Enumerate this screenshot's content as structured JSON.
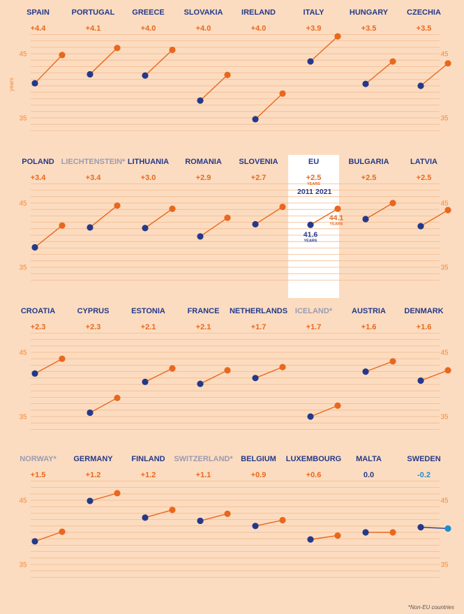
{
  "colors": {
    "background": "#fcdcc0",
    "grid": "#f3b98c",
    "eu_name": "#24398a",
    "non_eu_name": "#9a9ab3",
    "increase": "#e8681e",
    "zero": "#24398a",
    "decrease": "#1a8fd0",
    "dot_2011": "#24398a",
    "dot_2021": "#e8681e",
    "dot_2021_decrease": "#1a8fd0",
    "tick": "#f08a3c",
    "eu_highlight": "#ffffff"
  },
  "chart_data": {
    "type": "line",
    "ylabel": "years",
    "yticks": [
      35,
      45
    ],
    "ylim": [
      32.2,
      48.7
    ],
    "x": [
      "2011",
      "2021"
    ],
    "footnote": "*Non-EU countries",
    "panels": [
      {
        "name": "SPAIN",
        "delta": "+4.4",
        "non_eu": false,
        "v2011": 40.4,
        "v2021": 44.8
      },
      {
        "name": "PORTUGAL",
        "delta": "+4.1",
        "non_eu": false,
        "v2011": 41.8,
        "v2021": 45.9
      },
      {
        "name": "GREECE",
        "delta": "+4.0",
        "non_eu": false,
        "v2011": 41.6,
        "v2021": 45.6
      },
      {
        "name": "SLOVAKIA",
        "delta": "+4.0",
        "non_eu": false,
        "v2011": 37.7,
        "v2021": 41.7
      },
      {
        "name": "IRELAND",
        "delta": "+4.0",
        "non_eu": false,
        "v2011": 34.8,
        "v2021": 38.8
      },
      {
        "name": "ITALY",
        "delta": "+3.9",
        "non_eu": false,
        "v2011": 43.8,
        "v2021": 47.7
      },
      {
        "name": "HUNGARY",
        "delta": "+3.5",
        "non_eu": false,
        "v2011": 40.3,
        "v2021": 43.8
      },
      {
        "name": "CZECHIA",
        "delta": "+3.5",
        "non_eu": false,
        "v2011": 40.0,
        "v2021": 43.5
      },
      {
        "name": "POLAND",
        "delta": "+3.4",
        "non_eu": false,
        "v2011": 38.1,
        "v2021": 41.5
      },
      {
        "name": "LIECHTENSTEIN*",
        "delta": "+3.4",
        "non_eu": true,
        "v2011": 41.2,
        "v2021": 44.6
      },
      {
        "name": "LITHUANIA",
        "delta": "+3.0",
        "non_eu": false,
        "v2011": 41.1,
        "v2021": 44.1
      },
      {
        "name": "ROMANIA",
        "delta": "+2.9",
        "non_eu": false,
        "v2011": 39.8,
        "v2021": 42.7
      },
      {
        "name": "SLOVENIA",
        "delta": "+2.7",
        "non_eu": false,
        "v2011": 41.7,
        "v2021": 44.4
      },
      {
        "name": "EU",
        "delta": "+2.5",
        "non_eu": false,
        "v2011": 41.6,
        "v2021": 44.1,
        "highlight": true,
        "delta_unit": "YEARS",
        "year_start": "2011",
        "year_end": "2021",
        "label_2011": "41.6",
        "label_2021": "44.1",
        "label_unit": "YEARS"
      },
      {
        "name": "BULGARIA",
        "delta": "+2.5",
        "non_eu": false,
        "v2011": 42.5,
        "v2021": 45.0
      },
      {
        "name": "LATVIA",
        "delta": "+2.5",
        "non_eu": false,
        "v2011": 41.4,
        "v2021": 43.9
      },
      {
        "name": "CROATIA",
        "delta": "+2.3",
        "non_eu": false,
        "v2011": 41.7,
        "v2021": 44.0
      },
      {
        "name": "CYPRUS",
        "delta": "+2.3",
        "non_eu": false,
        "v2011": 35.6,
        "v2021": 37.9
      },
      {
        "name": "ESTONIA",
        "delta": "+2.1",
        "non_eu": false,
        "v2011": 40.4,
        "v2021": 42.5
      },
      {
        "name": "FRANCE",
        "delta": "+2.1",
        "non_eu": false,
        "v2011": 40.1,
        "v2021": 42.2
      },
      {
        "name": "NETHERLANDS",
        "delta": "+1.7",
        "non_eu": false,
        "v2011": 41.0,
        "v2021": 42.7
      },
      {
        "name": "ICELAND*",
        "delta": "+1.7",
        "non_eu": true,
        "v2011": 35.0,
        "v2021": 36.7
      },
      {
        "name": "AUSTRIA",
        "delta": "+1.6",
        "non_eu": false,
        "v2011": 42.0,
        "v2021": 43.6
      },
      {
        "name": "DENMARK",
        "delta": "+1.6",
        "non_eu": false,
        "v2011": 40.6,
        "v2021": 42.2
      },
      {
        "name": "NORWAY*",
        "delta": "+1.5",
        "non_eu": true,
        "v2011": 38.6,
        "v2021": 40.1
      },
      {
        "name": "GERMANY",
        "delta": "+1.2",
        "non_eu": false,
        "v2011": 44.9,
        "v2021": 46.1
      },
      {
        "name": "FINLAND",
        "delta": "+1.2",
        "non_eu": false,
        "v2011": 42.3,
        "v2021": 43.5
      },
      {
        "name": "SWITZERLAND*",
        "delta": "+1.1",
        "non_eu": true,
        "v2011": 41.8,
        "v2021": 42.9
      },
      {
        "name": "BELGIUM",
        "delta": "+0.9",
        "non_eu": false,
        "v2011": 41.0,
        "v2021": 41.9
      },
      {
        "name": "LUXEMBOURG",
        "delta": "+0.6",
        "non_eu": false,
        "v2011": 38.9,
        "v2021": 39.5
      },
      {
        "name": "MALTA",
        "delta": "0.0",
        "non_eu": false,
        "v2011": 40.0,
        "v2021": 40.0
      },
      {
        "name": "SWEDEN",
        "delta": "-0.2",
        "non_eu": false,
        "v2011": 40.8,
        "v2021": 40.6
      }
    ]
  }
}
